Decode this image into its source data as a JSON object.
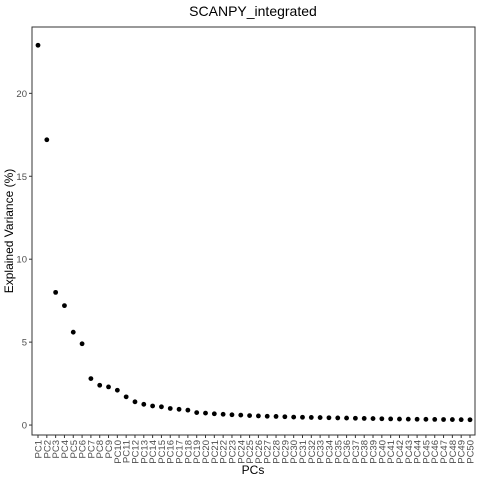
{
  "chart_data": {
    "type": "scatter",
    "title": "SCANPY_integrated",
    "xlabel": "PCs",
    "ylabel": "Explained Variance (%)",
    "categories": [
      "PC1",
      "PC2",
      "PC3",
      "PC4",
      "PC5",
      "PC6",
      "PC7",
      "PC8",
      "PC9",
      "PC10",
      "PC11",
      "PC12",
      "PC13",
      "PC14",
      "PC15",
      "PC16",
      "PC17",
      "PC18",
      "PC19",
      "PC20",
      "PC21",
      "PC22",
      "PC23",
      "PC24",
      "PC25",
      "PC26",
      "PC27",
      "PC28",
      "PC29",
      "PC30",
      "PC31",
      "PC32",
      "PC33",
      "PC34",
      "PC35",
      "PC36",
      "PC37",
      "PC38",
      "PC39",
      "PC40",
      "PC41",
      "PC42",
      "PC43",
      "PC44",
      "PC45",
      "PC46",
      "PC47",
      "PC48",
      "PC49",
      "PC50"
    ],
    "values": [
      22.9,
      17.2,
      8.0,
      7.2,
      5.6,
      4.9,
      2.8,
      2.4,
      2.3,
      2.1,
      1.7,
      1.4,
      1.25,
      1.15,
      1.1,
      1.0,
      0.95,
      0.9,
      0.75,
      0.72,
      0.68,
      0.65,
      0.62,
      0.6,
      0.57,
      0.55,
      0.53,
      0.52,
      0.5,
      0.48,
      0.47,
      0.46,
      0.45,
      0.44,
      0.43,
      0.42,
      0.41,
      0.4,
      0.39,
      0.38,
      0.37,
      0.36,
      0.355,
      0.35,
      0.345,
      0.34,
      0.335,
      0.33,
      0.325,
      0.32
    ],
    "yticks": [
      0,
      5,
      10,
      15,
      20
    ],
    "ylim": [
      -0.6,
      24
    ],
    "grid": false,
    "point_color": "#000000"
  }
}
